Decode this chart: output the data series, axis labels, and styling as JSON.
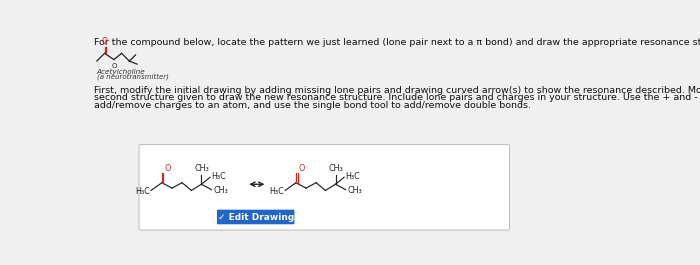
{
  "bg_color": "#f0f0f0",
  "title_text": "For the compound below, locate the pattern we just learned (lone pair next to a π bond) and draw the appropriate resonance structure.",
  "instruction_line1": "First, modify the initial drawing by adding missing lone pairs and drawing curved arrow(s) to show the resonance described. Modify the",
  "instruction_line2": "second structure given to draw the new resonance structure. Include lone pairs and charges in your structure. Use the + and - tools to",
  "instruction_line3": "add/remove charges to an atom, and use the single bond tool to add/remove double bonds.",
  "acetylcholine_label1": "Acetylcholine",
  "acetylcholine_label2": "(a neurotransmitter)",
  "box_bg": "#ffffff",
  "box_border": "#bbbbbb",
  "molecule_red": "#cc2222",
  "molecule_dark": "#222222",
  "button_bg": "#2266cc",
  "button_text": "✓ Edit Drawing",
  "button_text_color": "#ffffff",
  "text_color": "#111111"
}
